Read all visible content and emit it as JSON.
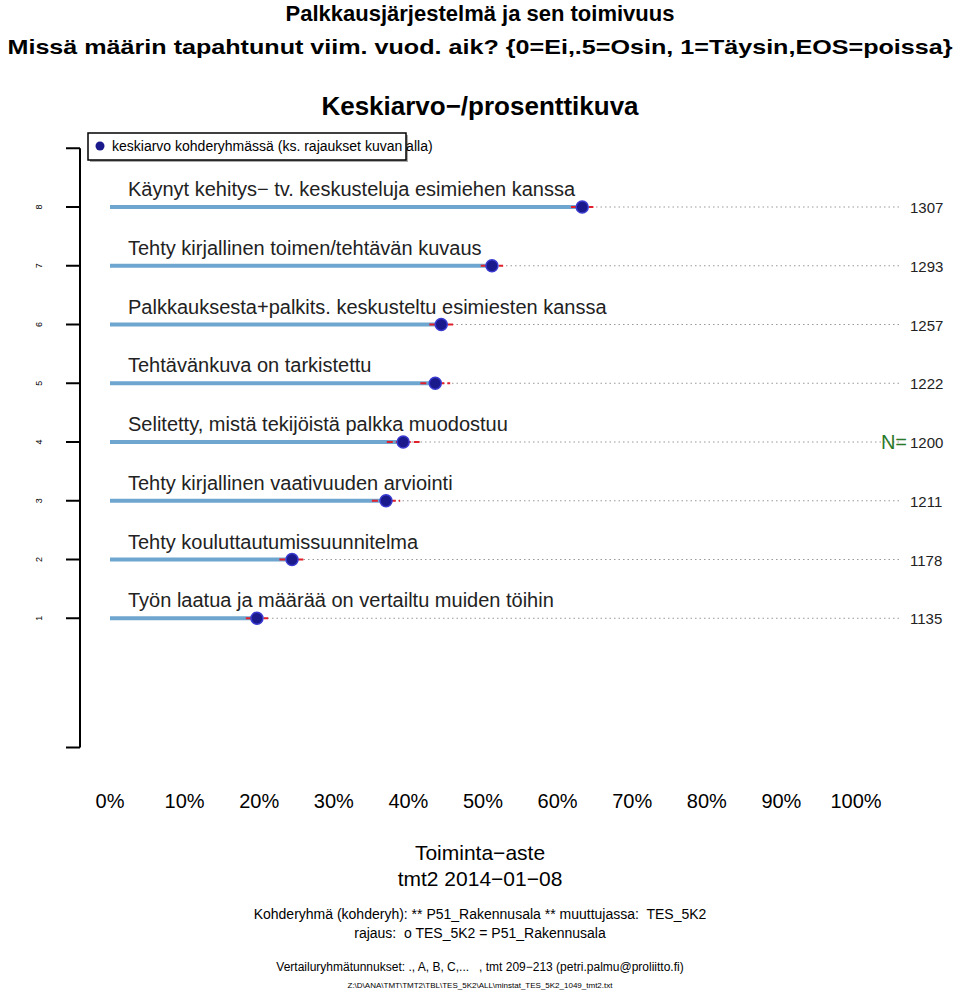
{
  "chart_data": {
    "type": "dot",
    "orientation": "horizontal",
    "title": "Palkkausjärjestelmä ja sen toimivuus",
    "subtitle": "Missä määrin tapahtunut viim. vuod. aik? {0=Ei,.5=Osin, 1=Täysin,EOS=poissa}",
    "heading": "Keskiarvo−/prosenttikuva",
    "xlabel": "Toiminta−aste",
    "date": "tmt2 2014−01−08",
    "categories": [
      "Työn laatua ja määrää on vertailtu muiden töihin",
      "Tehty kouluttautumissuunnitelma",
      "Tehty kirjallinen vaativuuden arviointi",
      "Selitetty, mistä tekijöistä palkka muodostuu",
      "Tehtävänkuva on tarkistettu",
      "Palkkauksesta+palkits. keskusteltu esimiesten kanssa",
      "Tehty kirjallinen toimen/tehtävän kuvaus",
      "Käynyt kehitys− tv. keskusteluja esimiehen kanssa"
    ],
    "series": [
      {
        "name": "keskiarvo kohderyhmässä (ks. rajaukset kuvan alla)",
        "color": "#1a1a8c",
        "values": [
          19.7,
          24.4,
          37.0,
          39.3,
          43.6,
          44.4,
          51.2,
          63.3
        ],
        "errors": [
          1.5,
          1.7,
          1.9,
          2.2,
          2.0,
          1.6,
          1.5,
          1.5
        ]
      }
    ],
    "n_label": "N=",
    "n": [
      1135,
      1178,
      1211,
      1200,
      1222,
      1257,
      1293,
      1307
    ],
    "xlim": [
      0,
      100
    ],
    "xticks": [
      {
        "value": 0,
        "label": "0%"
      },
      {
        "value": 10,
        "label": "10%"
      },
      {
        "value": 20,
        "label": "20%"
      },
      {
        "value": 30,
        "label": "30%"
      },
      {
        "value": 40,
        "label": "40%"
      },
      {
        "value": 50,
        "label": "50%"
      },
      {
        "value": 60,
        "label": "60%"
      },
      {
        "value": 70,
        "label": "70%"
      },
      {
        "value": 80,
        "label": "80%"
      },
      {
        "value": 90,
        "label": "90%"
      },
      {
        "value": 100,
        "label": "100%"
      }
    ],
    "ylim": [
      -1.2,
      9
    ],
    "yticks": [
      1,
      2,
      3,
      4,
      5,
      6,
      7,
      8
    ],
    "grid": true,
    "legend": "top-left",
    "notes": [
      "Kohderyhmä (kohderyh): ** P51_Rakennusala ** muuttujassa:  TES_5K2",
      "rajaus:  o TES_5K2 = P51_Rakennusala",
      "Vertailuryhmätunnukset: ., A, B, C,...   , tmt 209−213 (petri.palmu@proliitto.fi)",
      "Z:\\D\\ANA\\TMT\\TMT2\\TBL\\TES_5K2\\ALL\\minstat_TES_5K2_1049_tmt2.txt"
    ]
  }
}
